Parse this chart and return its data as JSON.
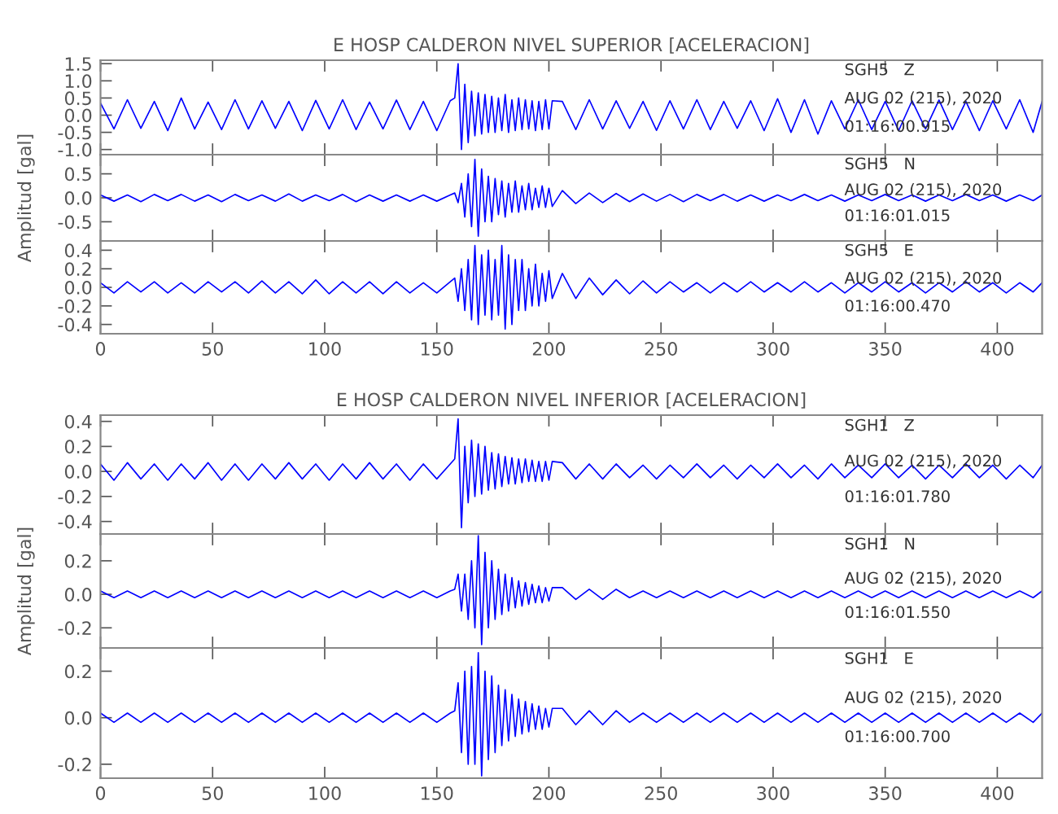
{
  "chart_data": [
    {
      "type": "line",
      "title": "E HOSP CALDERON NIVEL SUPERIOR [ACELERACION]",
      "tick_labels": "y",
      "x": [
        0,
        6,
        12,
        18,
        24,
        30,
        36,
        42,
        48,
        54,
        60,
        66,
        72,
        78,
        84,
        90,
        96,
        102,
        108,
        114,
        120,
        126,
        132,
        138,
        144,
        150,
        156,
        158,
        159.5,
        161,
        162.5,
        164,
        165.5,
        167,
        168.5,
        170,
        171.5,
        173,
        174.5,
        176,
        177.5,
        179,
        180.5,
        182,
        183.5,
        185,
        186.5,
        188,
        189.5,
        191,
        192.5,
        194,
        195.5,
        197,
        198.5,
        200,
        201.5,
        206,
        212,
        218,
        224,
        230,
        236,
        242,
        248,
        254,
        260,
        266,
        272,
        278,
        284,
        290,
        296,
        302,
        308,
        314,
        320,
        326,
        332,
        338,
        344,
        350,
        356,
        362,
        368,
        374,
        380,
        386,
        392,
        398,
        404,
        410,
        416,
        420
      ],
      "series": [
        {
          "color": "#0000ff",
          "values": [
            0.35,
            -0.4,
            0.45,
            -0.38,
            0.4,
            -0.45,
            0.5,
            -0.4,
            0.38,
            -0.42,
            0.45,
            -0.4,
            0.42,
            -0.38,
            0.4,
            -0.45,
            0.43,
            -0.4,
            0.45,
            -0.42,
            0.38,
            -0.4,
            0.44,
            -0.42,
            0.4,
            -0.45,
            0.42,
            0.5,
            1.5,
            -1.0,
            0.9,
            -0.8,
            0.7,
            -0.6,
            0.65,
            -0.55,
            0.6,
            -0.5,
            0.55,
            -0.5,
            0.5,
            -0.45,
            0.6,
            -0.5,
            0.45,
            -0.45,
            0.5,
            -0.42,
            0.45,
            -0.4,
            0.42,
            -0.45,
            0.4,
            -0.42,
            0.45,
            -0.4,
            0.42,
            0.4,
            -0.42,
            0.45,
            -0.4,
            0.42,
            -0.38,
            0.4,
            -0.44,
            0.42,
            -0.4,
            0.45,
            -0.42,
            0.4,
            -0.38,
            0.42,
            -0.45,
            0.48,
            -0.5,
            0.45,
            -0.55,
            0.42,
            -0.4,
            0.45,
            -0.42,
            0.4,
            -0.45,
            0.42,
            -0.4,
            0.44,
            -0.42,
            0.4,
            -0.45,
            0.42,
            -0.4,
            0.45,
            -0.5,
            0.4
          ]
        }
      ],
      "xlim": [
        0,
        420
      ],
      "ylim": [
        -1.15,
        1.6
      ],
      "xticks": [
        0,
        50,
        100,
        150,
        200,
        250,
        300,
        350,
        400
      ],
      "yticks": [
        {
          "value": -1,
          "label": "-1.0"
        },
        -0.5,
        {
          "value": 0,
          "label": "0.0"
        },
        0.5,
        {
          "value": 1,
          "label": "1.0"
        },
        1.5
      ],
      "annotations": [
        "SGH5   Z",
        "AUG 02 (215), 2020",
        "01:16:00.915"
      ]
    },
    {
      "type": "line",
      "ylabel": "Amplitud [gal]",
      "tick_labels": "y",
      "x": [
        0,
        6,
        12,
        18,
        24,
        30,
        36,
        42,
        48,
        54,
        60,
        66,
        72,
        78,
        84,
        90,
        96,
        102,
        108,
        114,
        120,
        126,
        132,
        138,
        144,
        150,
        156,
        158,
        159.5,
        161,
        162.5,
        164,
        165.5,
        167,
        168.5,
        170,
        171.5,
        173,
        174.5,
        176,
        177.5,
        179,
        180.5,
        182,
        183.5,
        185,
        186.5,
        188,
        189.5,
        191,
        192.5,
        194,
        195.5,
        197,
        198.5,
        200,
        201.5,
        206,
        212,
        218,
        224,
        230,
        236,
        242,
        248,
        254,
        260,
        266,
        272,
        278,
        284,
        290,
        296,
        302,
        308,
        314,
        320,
        326,
        332,
        338,
        344,
        350,
        356,
        362,
        368,
        374,
        380,
        386,
        392,
        398,
        404,
        410,
        416,
        420
      ],
      "series": [
        {
          "color": "#0000ff",
          "values": [
            0.06,
            -0.07,
            0.06,
            -0.08,
            0.07,
            -0.06,
            0.07,
            -0.07,
            0.06,
            -0.08,
            0.07,
            -0.06,
            0.06,
            -0.07,
            0.08,
            -0.07,
            0.06,
            -0.06,
            0.07,
            -0.08,
            0.06,
            -0.07,
            0.06,
            -0.07,
            0.06,
            -0.07,
            0.06,
            0.1,
            -0.1,
            0.3,
            -0.4,
            0.5,
            -0.6,
            0.8,
            -0.8,
            0.6,
            -0.5,
            0.45,
            -0.5,
            0.4,
            -0.35,
            0.35,
            -0.4,
            0.3,
            -0.3,
            0.35,
            -0.3,
            0.25,
            -0.25,
            0.3,
            -0.25,
            0.2,
            -0.2,
            0.25,
            -0.2,
            0.2,
            -0.18,
            0.15,
            -0.12,
            0.1,
            -0.1,
            0.09,
            -0.08,
            0.08,
            -0.07,
            0.07,
            -0.08,
            0.07,
            -0.06,
            0.07,
            -0.07,
            0.06,
            -0.07,
            0.06,
            -0.06,
            0.07,
            -0.06,
            0.06,
            -0.07,
            0.06,
            -0.06,
            0.07,
            -0.06,
            0.06,
            -0.07,
            0.06,
            -0.06,
            0.07,
            -0.06,
            0.06,
            -0.07,
            0.06,
            -0.06,
            0.06
          ]
        }
      ],
      "xlim": [
        0,
        420
      ],
      "ylim": [
        -0.9,
        0.9
      ],
      "xticks": [
        0,
        50,
        100,
        150,
        200,
        250,
        300,
        350,
        400
      ],
      "yticks": [
        -0.5,
        {
          "value": 0,
          "label": "0.0"
        },
        0.5
      ],
      "annotations": [
        "SGH5   N",
        "AUG 02 (215), 2020",
        "01:16:01.015"
      ]
    },
    {
      "type": "line",
      "x": [
        0,
        6,
        12,
        18,
        24,
        30,
        36,
        42,
        48,
        54,
        60,
        66,
        72,
        78,
        84,
        90,
        96,
        102,
        108,
        114,
        120,
        126,
        132,
        138,
        144,
        150,
        156,
        158,
        159.5,
        161,
        162.5,
        164,
        165.5,
        167,
        168.5,
        170,
        171.5,
        173,
        174.5,
        176,
        177.5,
        179,
        180.5,
        182,
        183.5,
        185,
        186.5,
        188,
        189.5,
        191,
        192.5,
        194,
        195.5,
        197,
        198.5,
        200,
        201.5,
        206,
        212,
        218,
        224,
        230,
        236,
        242,
        248,
        254,
        260,
        266,
        272,
        278,
        284,
        290,
        296,
        302,
        308,
        314,
        320,
        326,
        332,
        338,
        344,
        350,
        356,
        362,
        368,
        374,
        380,
        386,
        392,
        398,
        404,
        410,
        416,
        420
      ],
      "series": [
        {
          "color": "#0000ff",
          "values": [
            0.05,
            -0.06,
            0.06,
            -0.05,
            0.06,
            -0.06,
            0.05,
            -0.06,
            0.06,
            -0.05,
            0.06,
            -0.06,
            0.07,
            -0.06,
            0.06,
            -0.07,
            0.08,
            -0.07,
            0.06,
            -0.06,
            0.06,
            -0.07,
            0.06,
            -0.06,
            0.05,
            -0.06,
            0.06,
            0.1,
            -0.15,
            0.2,
            -0.25,
            0.3,
            -0.35,
            0.45,
            -0.4,
            0.35,
            -0.3,
            0.4,
            -0.35,
            0.3,
            -0.3,
            0.45,
            -0.45,
            0.35,
            -0.4,
            0.3,
            -0.25,
            0.3,
            -0.25,
            0.2,
            -0.2,
            0.25,
            -0.2,
            0.15,
            -0.15,
            0.18,
            -0.12,
            0.15,
            -0.12,
            0.1,
            -0.08,
            0.08,
            -0.07,
            0.07,
            -0.06,
            0.06,
            -0.05,
            0.05,
            -0.06,
            0.05,
            -0.05,
            0.06,
            -0.05,
            0.05,
            -0.05,
            0.06,
            -0.05,
            0.05,
            -0.06,
            0.05,
            -0.05,
            0.06,
            -0.05,
            0.05,
            -0.06,
            0.05,
            -0.05,
            0.06,
            -0.05,
            0.05,
            -0.06,
            0.05,
            -0.05,
            0.05
          ]
        }
      ],
      "xlim": [
        0,
        420
      ],
      "ylim": [
        -0.5,
        0.5
      ],
      "xticks": [
        0,
        50,
        100,
        150,
        200,
        250,
        300,
        350,
        400
      ],
      "yticks": [
        -0.4,
        -0.2,
        {
          "value": 0,
          "label": "0.0"
        },
        0.2,
        0.4
      ],
      "annotations": [
        "SGH5   E",
        "AUG 02 (215), 2020",
        "01:16:00.470"
      ]
    },
    {
      "type": "line",
      "title": "E HOSP CALDERON NIVEL INFERIOR [ACELERACION]",
      "tick_labels": "y",
      "x": [
        0,
        6,
        12,
        18,
        24,
        30,
        36,
        42,
        48,
        54,
        60,
        66,
        72,
        78,
        84,
        90,
        96,
        102,
        108,
        114,
        120,
        126,
        132,
        138,
        144,
        150,
        156,
        158,
        159.5,
        161,
        162.5,
        164,
        165.5,
        167,
        168.5,
        170,
        171.5,
        173,
        174.5,
        176,
        177.5,
        179,
        180.5,
        182,
        183.5,
        185,
        186.5,
        188,
        189.5,
        191,
        192.5,
        194,
        195.5,
        197,
        198.5,
        200,
        201.5,
        206,
        212,
        218,
        224,
        230,
        236,
        242,
        248,
        254,
        260,
        266,
        272,
        278,
        284,
        290,
        296,
        302,
        308,
        314,
        320,
        326,
        332,
        338,
        344,
        350,
        356,
        362,
        368,
        374,
        380,
        386,
        392,
        398,
        404,
        410,
        416,
        420
      ],
      "series": [
        {
          "color": "#0000ff",
          "values": [
            0.06,
            -0.07,
            0.07,
            -0.06,
            0.06,
            -0.07,
            0.06,
            -0.06,
            0.07,
            -0.07,
            0.06,
            -0.07,
            0.06,
            -0.06,
            0.07,
            -0.06,
            0.06,
            -0.07,
            0.06,
            -0.06,
            0.07,
            -0.06,
            0.06,
            -0.07,
            0.06,
            -0.06,
            0.06,
            0.1,
            0.42,
            -0.45,
            0.2,
            -0.25,
            0.25,
            -0.2,
            0.22,
            -0.18,
            0.2,
            -0.15,
            0.15,
            -0.14,
            0.14,
            -0.12,
            0.12,
            -0.1,
            0.11,
            -0.1,
            0.1,
            -0.09,
            0.1,
            -0.08,
            0.09,
            -0.08,
            0.08,
            -0.08,
            0.08,
            -0.07,
            0.08,
            0.07,
            -0.06,
            0.06,
            -0.06,
            0.06,
            -0.05,
            0.05,
            -0.06,
            0.05,
            -0.05,
            0.06,
            -0.05,
            0.05,
            -0.06,
            0.05,
            -0.05,
            0.06,
            -0.05,
            0.05,
            -0.06,
            0.06,
            -0.05,
            0.05,
            -0.05,
            0.06,
            -0.05,
            0.05,
            -0.06,
            0.05,
            -0.05,
            0.06,
            -0.05,
            0.05,
            -0.06,
            0.05,
            -0.05,
            0.05
          ]
        }
      ],
      "xlim": [
        0,
        420
      ],
      "ylim": [
        -0.5,
        0.45
      ],
      "xticks": [
        0,
        50,
        100,
        150,
        200,
        250,
        300,
        350,
        400
      ],
      "yticks": [
        -0.4,
        -0.2,
        {
          "value": 0,
          "label": "0.0"
        },
        0.2,
        0.4
      ],
      "annotations": [
        "SGH1   Z",
        "AUG 02 (215), 2020",
        "01:16:01.780"
      ]
    },
    {
      "type": "line",
      "ylabel": "Amplitud [gal]",
      "tick_labels": "y",
      "x": [
        0,
        6,
        12,
        18,
        24,
        30,
        36,
        42,
        48,
        54,
        60,
        66,
        72,
        78,
        84,
        90,
        96,
        102,
        108,
        114,
        120,
        126,
        132,
        138,
        144,
        150,
        156,
        158,
        159.5,
        161,
        162.5,
        164,
        165.5,
        167,
        168.5,
        170,
        171.5,
        173,
        174.5,
        176,
        177.5,
        179,
        180.5,
        182,
        183.5,
        185,
        186.5,
        188,
        189.5,
        191,
        192.5,
        194,
        195.5,
        197,
        198.5,
        200,
        201.5,
        206,
        212,
        218,
        224,
        230,
        236,
        242,
        248,
        254,
        260,
        266,
        272,
        278,
        284,
        290,
        296,
        302,
        308,
        314,
        320,
        326,
        332,
        338,
        344,
        350,
        356,
        362,
        368,
        374,
        380,
        386,
        392,
        398,
        404,
        410,
        416,
        420
      ],
      "series": [
        {
          "color": "#0000ff",
          "values": [
            0.02,
            -0.02,
            0.02,
            -0.02,
            0.02,
            -0.02,
            0.02,
            -0.02,
            0.02,
            -0.02,
            0.02,
            -0.02,
            0.02,
            -0.02,
            0.02,
            -0.02,
            0.02,
            -0.02,
            0.02,
            -0.02,
            0.02,
            -0.02,
            0.02,
            -0.02,
            0.02,
            -0.02,
            0.02,
            0.03,
            0.12,
            -0.1,
            0.12,
            -0.15,
            0.2,
            -0.2,
            0.35,
            -0.3,
            0.25,
            -0.2,
            0.2,
            -0.15,
            0.15,
            -0.12,
            0.12,
            -0.1,
            0.1,
            -0.08,
            0.08,
            -0.07,
            0.07,
            -0.06,
            0.06,
            -0.05,
            0.05,
            -0.05,
            0.04,
            -0.04,
            0.04,
            0.04,
            -0.03,
            0.03,
            -0.03,
            0.03,
            -0.02,
            0.02,
            -0.02,
            0.02,
            -0.02,
            0.02,
            -0.02,
            0.02,
            -0.02,
            0.02,
            -0.02,
            0.02,
            -0.02,
            0.02,
            -0.02,
            0.02,
            -0.02,
            0.02,
            -0.02,
            0.02,
            -0.02,
            0.02,
            -0.02,
            0.02,
            -0.02,
            0.02,
            -0.02,
            0.02,
            -0.02,
            0.02,
            -0.02,
            0.02
          ]
        }
      ],
      "xlim": [
        0,
        420
      ],
      "ylim": [
        -0.32,
        0.36
      ],
      "xticks": [
        0,
        50,
        100,
        150,
        200,
        250,
        300,
        350,
        400
      ],
      "yticks": [
        -0.2,
        {
          "value": 0,
          "label": "0.0"
        },
        0.2
      ],
      "annotations": [
        "SGH1   N",
        "AUG 02 (215), 2020",
        "01:16:01.550"
      ]
    },
    {
      "type": "line",
      "x": [
        0,
        6,
        12,
        18,
        24,
        30,
        36,
        42,
        48,
        54,
        60,
        66,
        72,
        78,
        84,
        90,
        96,
        102,
        108,
        114,
        120,
        126,
        132,
        138,
        144,
        150,
        156,
        158,
        159.5,
        161,
        162.5,
        164,
        165.5,
        167,
        168.5,
        170,
        171.5,
        173,
        174.5,
        176,
        177.5,
        179,
        180.5,
        182,
        183.5,
        185,
        186.5,
        188,
        189.5,
        191,
        192.5,
        194,
        195.5,
        197,
        198.5,
        200,
        201.5,
        206,
        212,
        218,
        224,
        230,
        236,
        242,
        248,
        254,
        260,
        266,
        272,
        278,
        284,
        290,
        296,
        302,
        308,
        314,
        320,
        326,
        332,
        338,
        344,
        350,
        356,
        362,
        368,
        374,
        380,
        386,
        392,
        398,
        404,
        410,
        416,
        420
      ],
      "series": [
        {
          "color": "#0000ff",
          "values": [
            0.02,
            -0.02,
            0.02,
            -0.02,
            0.02,
            -0.02,
            0.02,
            -0.02,
            0.02,
            -0.02,
            0.02,
            -0.02,
            0.02,
            -0.02,
            0.02,
            -0.02,
            0.02,
            -0.02,
            0.02,
            -0.02,
            0.02,
            -0.02,
            0.02,
            -0.02,
            0.02,
            -0.02,
            0.02,
            0.03,
            0.15,
            -0.15,
            0.2,
            -0.2,
            0.22,
            -0.2,
            0.28,
            -0.25,
            0.2,
            -0.18,
            0.18,
            -0.15,
            0.14,
            -0.12,
            0.12,
            -0.1,
            0.1,
            -0.08,
            0.08,
            -0.07,
            0.07,
            -0.06,
            0.06,
            -0.05,
            0.05,
            -0.05,
            0.04,
            -0.04,
            0.04,
            0.04,
            -0.03,
            0.03,
            -0.03,
            0.03,
            -0.02,
            0.02,
            -0.02,
            0.02,
            -0.02,
            0.02,
            -0.02,
            0.02,
            -0.02,
            0.02,
            -0.02,
            0.02,
            -0.02,
            0.02,
            -0.02,
            0.02,
            -0.02,
            0.02,
            -0.02,
            0.02,
            -0.02,
            0.02,
            -0.02,
            0.02,
            -0.02,
            0.02,
            -0.02,
            0.02,
            -0.02,
            0.02,
            -0.02,
            0.02
          ]
        }
      ],
      "xlim": [
        0,
        420
      ],
      "ylim": [
        -0.26,
        0.3
      ],
      "xticks": [
        0,
        50,
        100,
        150,
        200,
        250,
        300,
        350,
        400
      ],
      "yticks": [
        -0.2,
        {
          "value": 0,
          "label": "0.0"
        },
        0.2
      ],
      "annotations": [
        "SGH1   E",
        "AUG 02 (215), 2020",
        "01:16:00.700"
      ]
    }
  ]
}
